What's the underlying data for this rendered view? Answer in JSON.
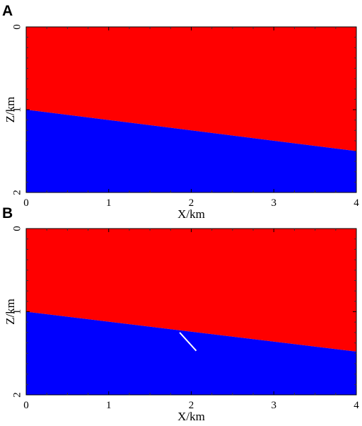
{
  "chart_data": [
    {
      "panel": "A",
      "type": "area",
      "xlabel": "X/km",
      "ylabel": "Z/km",
      "xlim": [
        0,
        4
      ],
      "ylim": [
        0,
        2
      ],
      "y_inverted": true,
      "xticks": [
        "0",
        "1",
        "2",
        "3",
        "4"
      ],
      "yticks": [
        "0",
        "1",
        "2"
      ],
      "interface": {
        "x": [
          0,
          4
        ],
        "z": [
          1.0,
          1.5
        ]
      },
      "layers": [
        {
          "color": "#ff0000",
          "region": "above_interface"
        },
        {
          "color": "#0000ff",
          "region": "below_interface"
        }
      ]
    },
    {
      "panel": "B",
      "type": "area",
      "xlabel": "X/km",
      "ylabel": "Z/km",
      "xlim": [
        0,
        4
      ],
      "ylim": [
        0,
        2
      ],
      "y_inverted": true,
      "xticks": [
        "0",
        "1",
        "2",
        "3",
        "4"
      ],
      "yticks": [
        "0",
        "1",
        "2"
      ],
      "interface": {
        "x": [
          0,
          4
        ],
        "z": [
          1.0,
          1.48
        ]
      },
      "layers": [
        {
          "color": "#ff0000",
          "region": "above_interface"
        },
        {
          "color": "#0000ff",
          "region": "below_interface"
        }
      ],
      "segment": {
        "x": [
          1.86,
          2.06
        ],
        "z": [
          1.25,
          1.47
        ],
        "color": "#ffffff"
      }
    }
  ]
}
